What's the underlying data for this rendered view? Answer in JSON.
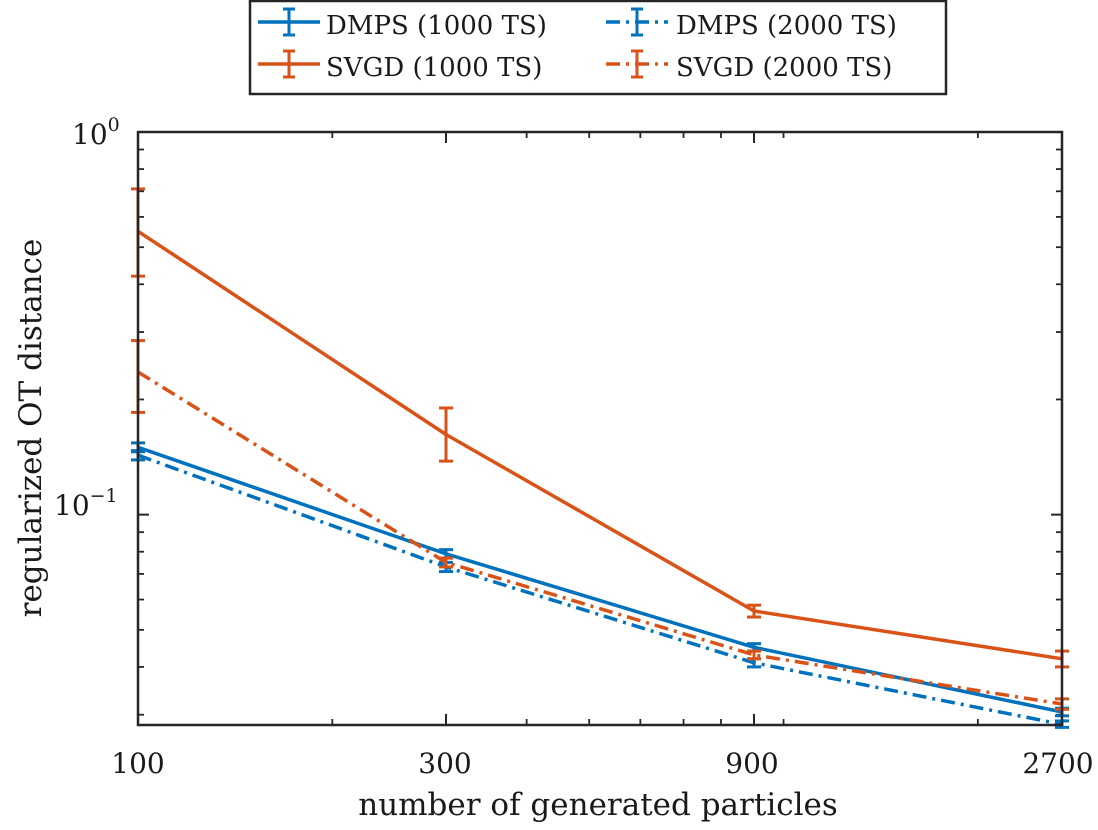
{
  "chart_data": {
    "type": "line",
    "title": "",
    "xlabel": "number of generated particles",
    "ylabel": "regularized OT distance",
    "xscale": "log",
    "yscale": "log",
    "x": [
      100,
      300,
      900,
      2700
    ],
    "xlim": [
      100,
      2700
    ],
    "ylim": [
      0.0282,
      1.0
    ],
    "xtick_labels": [
      "100",
      "300",
      "900",
      "2700"
    ],
    "ytick_labels": [
      {
        "base": "10",
        "exp": "0",
        "value": 1.0
      },
      {
        "base": "10",
        "exp": "−1",
        "value": 0.1
      }
    ],
    "grid": false,
    "legend_position": "top-center, outside plot area",
    "series": [
      {
        "name": "DMPS (1000 TS)",
        "color": "#0072BD",
        "dash": "solid",
        "values": [
          0.15,
          0.079,
          0.045,
          0.0305
        ],
        "err_low": [
          0.146,
          0.077,
          0.044,
          0.0298
        ],
        "err_high": [
          0.154,
          0.081,
          0.046,
          0.0312
        ]
      },
      {
        "name": "DMPS (2000 TS)",
        "color": "#0072BD",
        "dash": "dashdot",
        "values": [
          0.143,
          0.073,
          0.041,
          0.0283
        ],
        "err_low": [
          0.139,
          0.071,
          0.04,
          0.0278
        ],
        "err_high": [
          0.147,
          0.075,
          0.042,
          0.0289
        ]
      },
      {
        "name": "SVGD (1000 TS)",
        "color": "#D95319",
        "dash": "solid",
        "values": [
          0.55,
          0.162,
          0.056,
          0.042
        ],
        "err_low": [
          0.42,
          0.138,
          0.054,
          0.04
        ],
        "err_high": [
          0.71,
          0.19,
          0.058,
          0.044
        ]
      },
      {
        "name": "SVGD (2000 TS)",
        "color": "#D95319",
        "dash": "dashdot",
        "values": [
          0.236,
          0.075,
          0.043,
          0.032
        ],
        "err_low": [
          0.185,
          0.073,
          0.042,
          0.031
        ],
        "err_high": [
          0.285,
          0.077,
          0.044,
          0.033
        ]
      }
    ]
  }
}
